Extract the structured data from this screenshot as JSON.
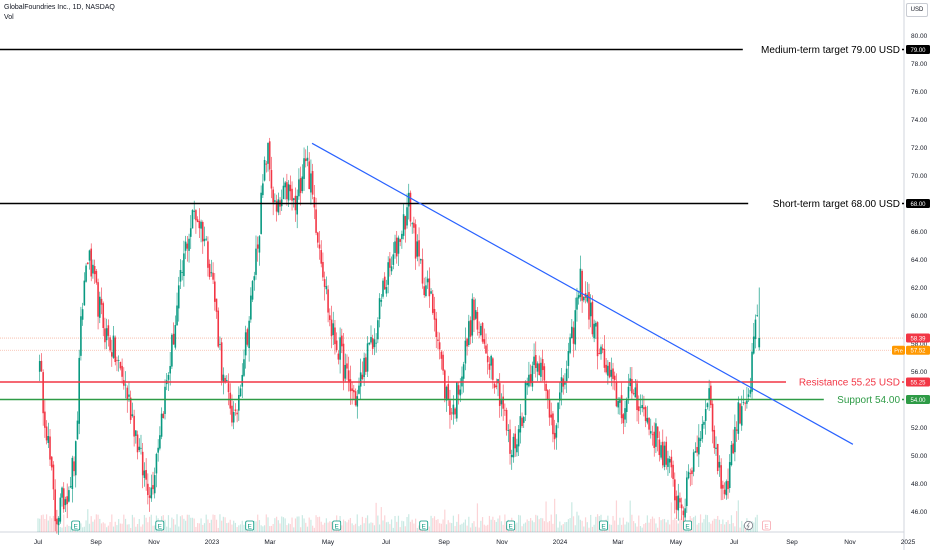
{
  "header": {
    "symbol": "GlobalFoundries Inc., 1D, NASDAQ",
    "volume_label": "Vol",
    "currency": "USD"
  },
  "chart_data": {
    "type": "candlestick",
    "price_axis": {
      "min": 46,
      "max": 80,
      "step": 2,
      "tick_labels": [
        "80.00",
        "78.00",
        "76.00",
        "74.00",
        "72.00",
        "70.00",
        "68.00",
        "66.00",
        "64.00",
        "62.00",
        "60.00",
        "58.00",
        "56.00",
        "54.00",
        "52.00",
        "50.00",
        "48.00",
        "46.00"
      ]
    },
    "time_axis": {
      "labels": [
        "Jul",
        "Sep",
        "Nov",
        "2023",
        "Mar",
        "May",
        "Jul",
        "Sep",
        "Nov",
        "2024",
        "Mar",
        "May",
        "Jul",
        "Sep",
        "Nov",
        "2025"
      ],
      "positions": [
        0,
        2,
        4,
        6,
        8,
        10,
        12,
        14,
        16,
        18,
        20,
        22,
        24,
        26,
        28,
        30
      ]
    },
    "price_path": [
      [
        0,
        57.0
      ],
      [
        0.3,
        52.0
      ],
      [
        0.6,
        45.5
      ],
      [
        1.0,
        47.5
      ],
      [
        1.3,
        50.0
      ],
      [
        1.5,
        60.0
      ],
      [
        1.7,
        64.5
      ],
      [
        2.0,
        61.5
      ],
      [
        2.3,
        59.0
      ],
      [
        2.6,
        57.5
      ],
      [
        3.0,
        55.0
      ],
      [
        3.3,
        52.5
      ],
      [
        3.6,
        49.0
      ],
      [
        3.9,
        47.5
      ],
      [
        4.2,
        52.0
      ],
      [
        4.5,
        56.0
      ],
      [
        4.8,
        60.5
      ],
      [
        5.1,
        65.0
      ],
      [
        5.4,
        67.5
      ],
      [
        5.7,
        66.0
      ],
      [
        6.0,
        63.0
      ],
      [
        6.2,
        59.0
      ],
      [
        6.4,
        55.0
      ],
      [
        6.6,
        54.0
      ],
      [
        6.8,
        52.0
      ],
      [
        7.0,
        56.0
      ],
      [
        7.3,
        60.0
      ],
      [
        7.6,
        66.0
      ],
      [
        7.9,
        72.0
      ],
      [
        8.2,
        67.0
      ],
      [
        8.6,
        69.0
      ],
      [
        8.9,
        67.5
      ],
      [
        9.2,
        72.0
      ],
      [
        9.5,
        68.0
      ],
      [
        9.8,
        64.0
      ],
      [
        10.1,
        59.0
      ],
      [
        10.4,
        57.5
      ],
      [
        10.7,
        55.0
      ],
      [
        11.0,
        54.0
      ],
      [
        11.3,
        57.0
      ],
      [
        11.6,
        58.0
      ],
      [
        11.9,
        62.0
      ],
      [
        12.2,
        63.5
      ],
      [
        12.5,
        66.0
      ],
      [
        12.8,
        68.0
      ],
      [
        13.1,
        64.0
      ],
      [
        13.4,
        62.0
      ],
      [
        13.7,
        60.0
      ],
      [
        14.0,
        55.0
      ],
      [
        14.3,
        53.0
      ],
      [
        14.7,
        57.0
      ],
      [
        15.0,
        60.5
      ],
      [
        15.3,
        58.0
      ],
      [
        15.6,
        57.0
      ],
      [
        16.0,
        54.0
      ],
      [
        16.3,
        50.0
      ],
      [
        16.6,
        52.0
      ],
      [
        16.9,
        55.5
      ],
      [
        17.2,
        57.5
      ],
      [
        17.5,
        54.5
      ],
      [
        17.8,
        52.0
      ],
      [
        18.1,
        55.0
      ],
      [
        18.4,
        58.0
      ],
      [
        18.7,
        62.5
      ],
      [
        19.0,
        60.5
      ],
      [
        19.3,
        58.0
      ],
      [
        19.6,
        56.0
      ],
      [
        19.9,
        54.5
      ],
      [
        20.2,
        53.0
      ],
      [
        20.5,
        55.0
      ],
      [
        20.8,
        53.5
      ],
      [
        21.1,
        52.0
      ],
      [
        21.4,
        51.0
      ],
      [
        21.7,
        49.5
      ],
      [
        22.0,
        47.0
      ],
      [
        22.3,
        46.5
      ],
      [
        22.6,
        50.0
      ],
      [
        22.9,
        52.0
      ],
      [
        23.1,
        55.0
      ],
      [
        23.3,
        51.5
      ],
      [
        23.5,
        48.5
      ],
      [
        23.7,
        47.5
      ],
      [
        23.9,
        50.0
      ],
      [
        24.1,
        52.5
      ],
      [
        24.3,
        54.0
      ],
      [
        24.6,
        55.0
      ],
      [
        24.65,
        58.0
      ],
      [
        24.8,
        59.5
      ]
    ],
    "last_candle": {
      "open": 57.8,
      "close": 58.39,
      "high": 62.0,
      "low": 57.5
    },
    "horizontal_levels": [
      {
        "price": 79.0,
        "label": "Medium-term target 79.00 USD",
        "color": "#000000",
        "badge": "79.00"
      },
      {
        "price": 68.0,
        "label": "Short-term target 68.00 USD",
        "color": "#000000",
        "badge": "68.00"
      },
      {
        "price": 55.25,
        "label": "Resistance 55.25 USD",
        "color": "#f23645",
        "badge": "55.25"
      },
      {
        "price": 54.0,
        "label": "Support 54.00",
        "color": "#2e9b46",
        "badge": "54.00"
      }
    ],
    "trendline": {
      "from": [
        9.45,
        72.3
      ],
      "to": [
        28.1,
        50.8
      ],
      "color": "#2962ff"
    },
    "price_badges": [
      {
        "price": 58.39,
        "label": "58.39",
        "color": "#f23645"
      },
      {
        "price": 57.52,
        "label": "57.52",
        "prefix": "Pre",
        "color": "#ff9800"
      }
    ],
    "reference_lines": [
      58.39,
      57.52
    ],
    "earnings_markers_at": [
      1.3,
      4.2,
      7.3,
      10.3,
      13.3,
      16.3,
      19.5,
      22.4
    ],
    "upcoming_event_at": 24.5,
    "colors": {
      "up": "#089981",
      "down": "#f23645"
    }
  }
}
